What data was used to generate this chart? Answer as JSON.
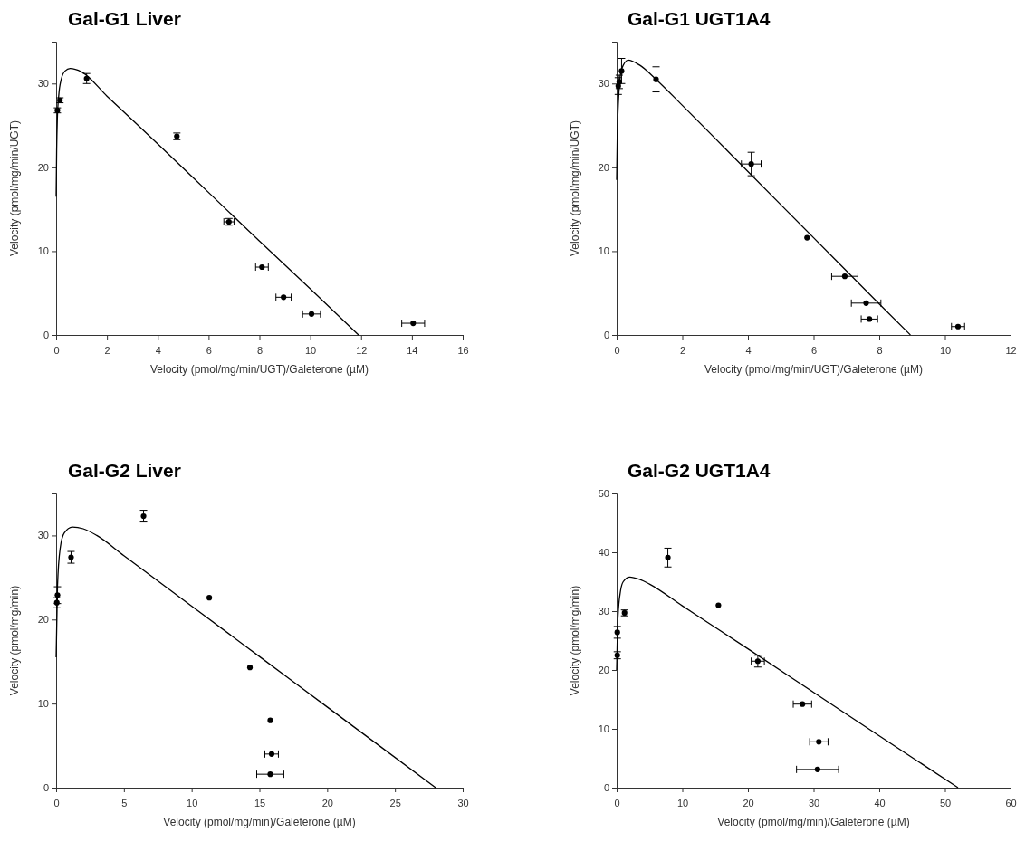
{
  "chart_data": [
    {
      "type": "scatter",
      "title": "Gal-G1 Liver",
      "xlabel": "Velocity (pmol/mg/min/UGT)/Galeterone (µM)",
      "ylabel": "Velocity (pmol/mg/min/UGT)",
      "xlim": [
        0,
        16
      ],
      "xticks": [
        0,
        2,
        4,
        6,
        8,
        10,
        12,
        14,
        16
      ],
      "ylim": [
        0,
        35
      ],
      "yticks": [
        0,
        10,
        20,
        30
      ],
      "series": [
        {
          "type": "scatter",
          "color": "#000000",
          "marker": "circle",
          "x": [
            0.05,
            0.15,
            1.2,
            4.75,
            6.8,
            8.1,
            8.95,
            10.05,
            14.05
          ],
          "values": [
            26.8,
            28,
            30.6,
            23.7,
            13.5,
            8.1,
            4.5,
            2.5,
            1.4
          ],
          "errors": [
            0.3,
            0.3,
            0.6,
            0.4,
            0.4,
            null,
            null,
            null,
            null
          ],
          "xerrors": [
            null,
            null,
            null,
            null,
            0.2,
            0.25,
            0.3,
            0.35,
            0.45
          ]
        },
        {
          "type": "line",
          "color": "#000000",
          "marker": "none",
          "line_style": "solid",
          "x": [
            0,
            0.02,
            0.05,
            0.1,
            0.2,
            0.35,
            0.55,
            1,
            2,
            4,
            6,
            8,
            10,
            11.9
          ],
          "values": [
            16.5,
            22,
            26,
            28.5,
            30.5,
            31.5,
            31.8,
            31.4,
            28.5,
            22.8,
            17.0,
            11.2,
            5.5,
            0
          ]
        }
      ]
    },
    {
      "type": "scatter",
      "title": "Gal-G1 UGT1A4",
      "xlabel": "Velocity (pmol/mg/min/UGT)/Galeterone (µM)",
      "ylabel": "Velocity (pmol/mg/min/UGT)",
      "xlim": [
        0,
        12
      ],
      "xticks": [
        0,
        2,
        4,
        6,
        8,
        10,
        12
      ],
      "ylim": [
        0,
        35
      ],
      "yticks": [
        0,
        10,
        20,
        30
      ],
      "series": [
        {
          "type": "scatter",
          "color": "#000000",
          "marker": "circle",
          "x": [
            0.05,
            0.08,
            0.15,
            1.2,
            4.1,
            5.8,
            6.95,
            7.6,
            7.7,
            10.4
          ],
          "values": [
            29.7,
            30.2,
            31.5,
            30.5,
            20.4,
            11.6,
            7.0,
            3.8,
            1.9,
            1.0
          ],
          "errors": [
            1.0,
            0.8,
            1.5,
            1.5,
            1.4,
            null,
            null,
            null,
            null,
            null
          ],
          "xerrors": [
            null,
            null,
            null,
            null,
            0.3,
            null,
            0.4,
            0.45,
            0.25,
            0.2
          ]
        },
        {
          "type": "line",
          "color": "#000000",
          "marker": "none",
          "line_style": "solid",
          "x": [
            0,
            0.02,
            0.05,
            0.1,
            0.15,
            0.35,
            0.7,
            1.2,
            2,
            4,
            6,
            8,
            8.95
          ],
          "values": [
            18.5,
            24,
            27.5,
            30.5,
            31.7,
            32.8,
            32.2,
            30.5,
            27.4,
            19.5,
            11.6,
            3.7,
            0
          ]
        }
      ]
    },
    {
      "type": "scatter",
      "title": "Gal-G2 Liver",
      "xlabel": "Velocity (pmol/mg/min)/Galeterone (µM)",
      "ylabel": "Velocity (pmol/mg/min)",
      "xlim": [
        0,
        30
      ],
      "xticks": [
        0,
        5,
        10,
        15,
        20,
        25,
        30
      ],
      "ylim": [
        0,
        35
      ],
      "yticks": [
        0,
        10,
        20,
        30
      ],
      "series": [
        {
          "type": "scatter",
          "color": "#000000",
          "marker": "circle",
          "x": [
            0.05,
            0.1,
            1.1,
            6.45,
            11.3,
            14.3,
            15.8,
            15.9,
            15.8
          ],
          "values": [
            22,
            22.9,
            27.4,
            32.3,
            22.6,
            14.3,
            8.0,
            4.0,
            1.6
          ],
          "errors": [
            0.6,
            1.0,
            0.7,
            0.7,
            null,
            null,
            null,
            null,
            null
          ],
          "xerrors": [
            null,
            null,
            null,
            null,
            null,
            null,
            null,
            0.5,
            1.0
          ]
        },
        {
          "type": "line",
          "color": "#000000",
          "marker": "none",
          "line_style": "solid",
          "x": [
            0,
            0.1,
            0.3,
            0.6,
            1.2,
            2,
            3,
            5,
            10,
            15,
            20,
            28
          ],
          "values": [
            15.5,
            24,
            28.5,
            30.3,
            31,
            30.8,
            30,
            27.6,
            21.6,
            15.6,
            9.6,
            0
          ]
        }
      ]
    },
    {
      "type": "scatter",
      "title": "Gal-G2 UGT1A4",
      "xlabel": "Velocity (pmol/mg/min)/Galeterone (µM)",
      "ylabel": "Velocity (pmol/mg/min)",
      "xlim": [
        0,
        60
      ],
      "xticks": [
        0,
        10,
        20,
        30,
        40,
        50,
        60
      ],
      "ylim": [
        0,
        50
      ],
      "yticks": [
        0,
        10,
        20,
        30,
        40,
        50
      ],
      "series": [
        {
          "type": "scatter",
          "color": "#000000",
          "marker": "circle",
          "x": [
            0.1,
            0.1,
            1.2,
            7.8,
            15.5,
            21.5,
            28.3,
            30.8,
            30.6
          ],
          "values": [
            22.5,
            26.4,
            29.7,
            39.1,
            31.0,
            21.5,
            14.2,
            7.8,
            3.1
          ],
          "errors": [
            0.6,
            1.0,
            0.5,
            1.6,
            null,
            1.0,
            null,
            null,
            null
          ],
          "xerrors": [
            null,
            null,
            null,
            null,
            null,
            1.0,
            1.4,
            1.4,
            3.2
          ]
        },
        {
          "type": "line",
          "color": "#000000",
          "marker": "none",
          "line_style": "solid",
          "x": [
            0,
            0.2,
            0.6,
            1,
            2,
            3.5,
            5,
            10,
            20,
            30,
            40,
            52
          ],
          "values": [
            20,
            29,
            33.5,
            35,
            35.8,
            35.4,
            34.6,
            30.9,
            23.6,
            16.2,
            8.8,
            0
          ]
        }
      ]
    }
  ]
}
